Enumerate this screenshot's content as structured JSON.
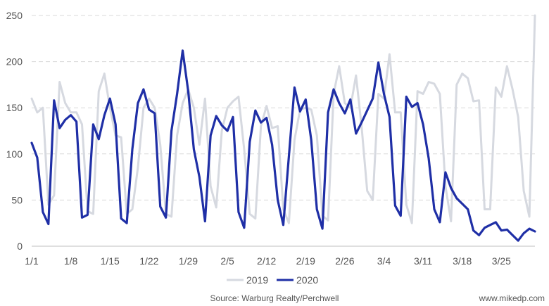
{
  "chart_data": {
    "type": "line",
    "title": "",
    "xlabel": "",
    "ylabel": "",
    "ylim": [
      0,
      250
    ],
    "yticks": [
      0,
      50,
      100,
      150,
      200,
      250
    ],
    "grid": "horizontal dashed",
    "legend_position": "bottom",
    "x_tick_labels": [
      "1/1",
      "1/8",
      "1/15",
      "1/22",
      "1/29",
      "2/5",
      "2/12",
      "2/19",
      "2/26",
      "3/4",
      "3/11",
      "3/18",
      "3/25"
    ],
    "series": [
      {
        "name": "2019",
        "color": "#d6d9e0",
        "values": [
          160,
          145,
          150,
          45,
          55,
          178,
          155,
          145,
          145,
          132,
          38,
          35,
          168,
          187,
          150,
          120,
          118,
          35,
          40,
          85,
          150,
          160,
          150,
          110,
          35,
          32,
          120,
          155,
          170,
          150,
          110,
          160,
          65,
          42,
          125,
          150,
          157,
          162,
          105,
          35,
          30,
          130,
          152,
          128,
          130,
          40,
          25,
          115,
          148,
          150,
          148,
          120,
          33,
          28,
          165,
          195,
          155,
          150,
          185,
          130,
          60,
          50,
          165,
          160,
          208,
          145,
          145,
          45,
          25,
          168,
          165,
          178,
          176,
          165,
          65,
          27,
          175,
          187,
          182,
          157,
          158,
          40,
          40,
          172,
          162,
          195,
          170,
          140,
          60,
          32,
          250
        ]
      },
      {
        "name": "2020",
        "color": "#1f2fa6",
        "values": [
          112,
          96,
          37,
          24,
          158,
          128,
          137,
          142,
          135,
          31,
          34,
          132,
          116,
          142,
          160,
          132,
          30,
          25,
          105,
          155,
          170,
          148,
          144,
          43,
          31,
          125,
          165,
          212,
          168,
          105,
          75,
          27,
          120,
          141,
          131,
          125,
          140,
          37,
          20,
          113,
          147,
          134,
          139,
          110,
          50,
          23,
          97,
          172,
          146,
          159,
          115,
          40,
          19,
          145,
          170,
          155,
          144,
          159,
          122,
          134,
          147,
          160,
          199,
          165,
          140,
          44,
          33,
          162,
          151,
          155,
          132,
          95,
          40,
          26,
          80,
          63,
          52,
          46,
          40,
          17,
          12,
          20,
          23,
          26,
          17,
          18,
          12,
          6,
          14,
          19,
          16
        ]
      }
    ]
  },
  "footer": {
    "source": "Source: Warburg Realty/Perchwell",
    "site": "www.mikedp.com"
  }
}
